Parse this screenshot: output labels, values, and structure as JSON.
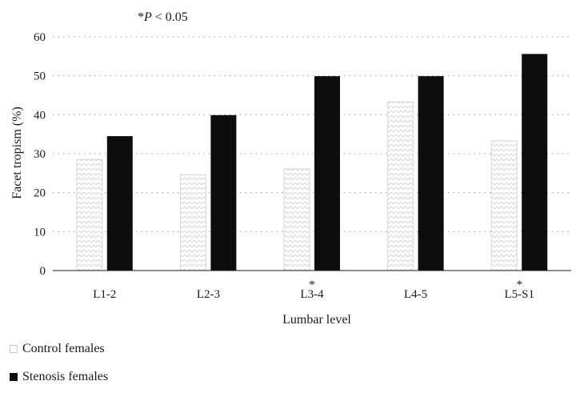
{
  "chart_data": {
    "type": "bar",
    "note": "*P < 0.05",
    "note_prefix": "*",
    "note_italic": "P",
    "note_suffix": " < 0.05",
    "categories": [
      "L1-2",
      "L2-3",
      "L3-4",
      "L4-5",
      "L5-S1"
    ],
    "significant": [
      false,
      false,
      true,
      false,
      true
    ],
    "significance_marker": "*",
    "series": [
      {
        "name": "Control females",
        "values": [
          28.5,
          24.6,
          26.1,
          43.3,
          33.3
        ],
        "color": "#ffffff",
        "pattern": "light-gray-zigzag"
      },
      {
        "name": "Stenosis females",
        "values": [
          34.5,
          39.9,
          49.9,
          49.9,
          55.6
        ],
        "color": "#0d0d0d"
      }
    ],
    "xlabel": "Lumbar level",
    "ylabel": "Facet tropism (%)",
    "ylim": [
      0,
      60
    ],
    "yticks": [
      "0",
      "10",
      "20",
      "30",
      "40",
      "50",
      "60"
    ],
    "grid": "dotted horizontal",
    "legend_position": "bottom-left"
  }
}
